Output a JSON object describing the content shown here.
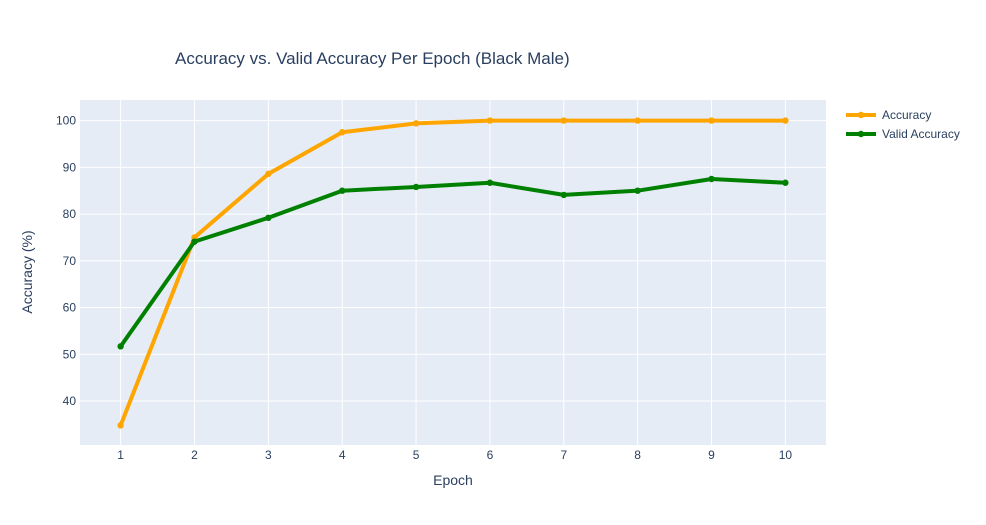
{
  "chart_data": {
    "type": "line",
    "title": "Accuracy vs. Valid Accuracy Per Epoch (Black Male)",
    "xlabel": "Epoch",
    "ylabel": "Accuracy (%)",
    "x": [
      1,
      2,
      3,
      4,
      5,
      6,
      7,
      8,
      9,
      10
    ],
    "x_tick_labels": [
      "1",
      "2",
      "3",
      "4",
      "5",
      "6",
      "7",
      "8",
      "9",
      "10"
    ],
    "y_tick_labels": [
      "40",
      "50",
      "60",
      "70",
      "80",
      "90",
      "100"
    ],
    "y_ticks": [
      40,
      50,
      60,
      70,
      80,
      90,
      100
    ],
    "xlim": [
      0.45,
      10.55
    ],
    "ylim": [
      30.6,
      104.4
    ],
    "grid": true,
    "legend_position": "top-right",
    "plot_background": "#e5ecf6",
    "series": [
      {
        "name": "Accuracy",
        "color": "#ffa500",
        "values": [
          34.8,
          75.0,
          88.6,
          97.5,
          99.4,
          100.0,
          100.0,
          100.0,
          100.0,
          100.0
        ]
      },
      {
        "name": "Valid Accuracy",
        "color": "#008000",
        "values": [
          51.7,
          74.1,
          79.2,
          85.0,
          85.8,
          86.7,
          84.1,
          85.0,
          87.5,
          86.7
        ]
      }
    ]
  }
}
